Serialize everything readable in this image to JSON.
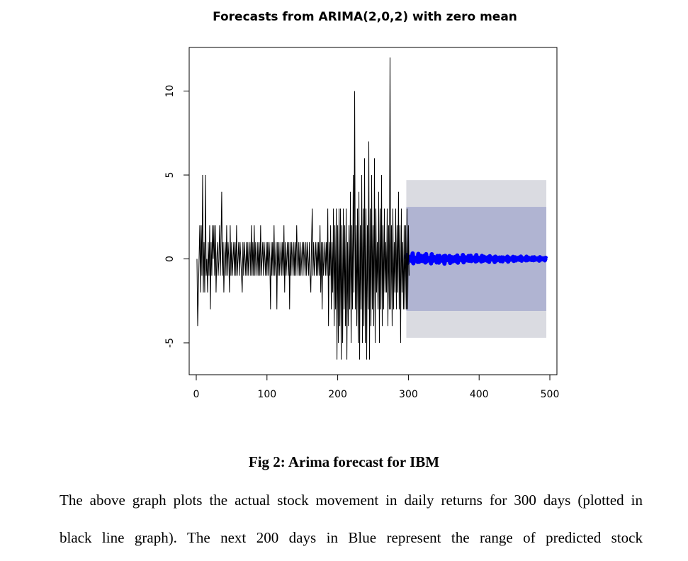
{
  "chart_data": {
    "type": "line",
    "title": "Forecasts from ARIMA(2,0,2) with zero mean",
    "xlabel": "",
    "ylabel": "",
    "xlim": [
      -10,
      510
    ],
    "ylim": [
      -6.9,
      12.6
    ],
    "x_ticks": [
      0,
      100,
      200,
      300,
      400,
      500
    ],
    "y_ticks": [
      -5,
      0,
      5,
      10
    ],
    "grid": false,
    "legend": "none",
    "series": [
      {
        "role": "observed",
        "x_start": 1,
        "values": [
          0,
          -4,
          -2,
          0,
          2,
          -2,
          2,
          -1,
          5,
          -2,
          1,
          -2,
          5,
          -1,
          0,
          -2,
          1,
          -1,
          2,
          -3,
          1,
          -1,
          2,
          0,
          2,
          -1,
          2,
          -2,
          0,
          1,
          -1,
          0,
          2,
          -1,
          1,
          4,
          -1,
          1,
          -2,
          0,
          1,
          -1,
          2,
          -1,
          1,
          0,
          -2,
          2,
          -1,
          1,
          -1,
          0,
          1,
          -1,
          1,
          -1,
          2,
          -1,
          0,
          1,
          -1,
          1,
          0,
          -1,
          -2,
          1,
          -1,
          1,
          0,
          -1,
          1,
          -1,
          1,
          -1,
          0,
          1,
          -1,
          2,
          -1,
          1,
          -1,
          2,
          -1,
          1,
          0,
          -1,
          1,
          -1,
          1,
          -1,
          2,
          -1,
          0,
          1,
          -1,
          1,
          0,
          -1,
          1,
          -1,
          1,
          -1,
          1,
          0,
          -3,
          1,
          -1,
          1,
          -1,
          2,
          -1,
          0,
          1,
          -3,
          1,
          -1,
          1,
          -1,
          0,
          1,
          -1,
          1,
          -1,
          2,
          -2,
          1,
          -1,
          0,
          1,
          -1,
          1,
          -3,
          1,
          -1,
          1,
          0,
          -1,
          1,
          -1,
          1,
          -1,
          2,
          0,
          -1,
          1,
          -1,
          1,
          -1,
          0,
          1,
          -1,
          1,
          0,
          -1,
          1,
          -1,
          1,
          0,
          -1,
          1,
          -1,
          -2,
          1,
          3,
          -1,
          1,
          -1,
          0,
          1,
          -1,
          1,
          -1,
          1,
          -1,
          2,
          -2,
          1,
          -3,
          1,
          -1,
          0,
          1,
          -1,
          1,
          -1,
          3,
          -4,
          1,
          -1,
          2,
          -3,
          1,
          -2,
          3,
          -4,
          2,
          -3,
          3,
          -6,
          2,
          -5,
          3,
          -4,
          3,
          -6,
          2,
          -5,
          3,
          -3,
          2,
          -4,
          3,
          -6,
          1,
          -4,
          2,
          -3,
          4,
          -5,
          2,
          -3,
          5,
          -2,
          10,
          -3,
          2,
          -4,
          3,
          -5,
          4,
          -6,
          2,
          -3,
          5,
          -5,
          3,
          -4,
          6,
          -5,
          3,
          -6,
          2,
          -3,
          7,
          -6,
          3,
          -4,
          5,
          -3,
          2,
          -4,
          6,
          -5,
          3,
          -2,
          1,
          -3,
          4,
          -5,
          3,
          -3,
          5,
          -4,
          2,
          -3,
          3,
          -2,
          1,
          -2,
          3,
          -4,
          2,
          -3,
          12,
          -3,
          2,
          -4,
          3,
          -3,
          1,
          -2,
          3,
          -3,
          2,
          -2,
          4,
          -3,
          2,
          -5,
          3,
          -2,
          1,
          -3,
          2,
          -3,
          2,
          -3,
          3,
          -3,
          2,
          -1
        ]
      },
      {
        "role": "point-forecast",
        "x_start": 297,
        "amplitude_start": 0.35,
        "amplitude_end": 0.1
      },
      {
        "role": "80%-interval",
        "x_start": 297,
        "x_end": 495,
        "lower": -3.1,
        "upper": 3.1
      },
      {
        "role": "95%-interval",
        "x_start": 297,
        "x_end": 495,
        "lower": -4.7,
        "upper": 4.7
      }
    ],
    "colors": {
      "observed": "#000000",
      "point_forecast": "#0000ff",
      "interval_80": "#b0b4d2",
      "interval_95": "#dadbe1",
      "axis": "#000000"
    }
  },
  "caption": "Fig 2: Arima forecast for IBM",
  "body_text": {
    "line1": "The above graph plots the actual stock movement in daily returns for 300 days (plotted in",
    "line2": "black line graph). The next 200 days in Blue represent the range of predicted stock"
  }
}
